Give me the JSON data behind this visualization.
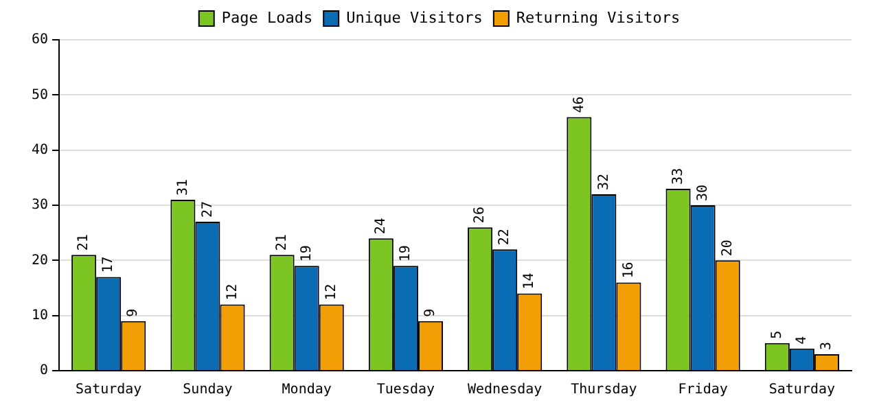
{
  "chart_data": {
    "type": "bar",
    "categories": [
      "Saturday",
      "Sunday",
      "Monday",
      "Tuesday",
      "Wednesday",
      "Thursday",
      "Friday",
      "Saturday"
    ],
    "series": [
      {
        "name": "Page Loads",
        "color": "#7dc522",
        "values": [
          21,
          31,
          21,
          24,
          26,
          46,
          33,
          5
        ]
      },
      {
        "name": "Unique Visitors",
        "color": "#0b6cb4",
        "values": [
          17,
          27,
          19,
          19,
          22,
          32,
          30,
          4
        ]
      },
      {
        "name": "Returning Visitors",
        "color": "#f29f05",
        "values": [
          9,
          12,
          12,
          9,
          14,
          16,
          20,
          3
        ]
      }
    ],
    "ylim": [
      0,
      60
    ],
    "yticks": [
      0,
      10,
      20,
      30,
      40,
      50,
      60
    ],
    "grid": "y",
    "legend": "top",
    "data_labels": true
  }
}
